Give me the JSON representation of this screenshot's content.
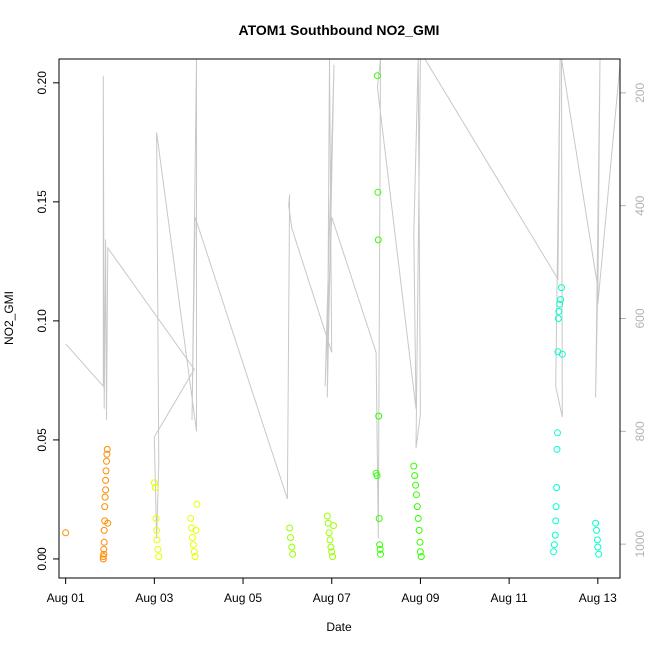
{
  "chart_data": {
    "type": "scatter",
    "title": "ATOM1 Southbound NO2_GMI",
    "xlabel": "Date",
    "ylabel": "NO2_GMI",
    "x_ticks": [
      "Aug 01",
      "Aug 03",
      "Aug 05",
      "Aug 07",
      "Aug 09",
      "Aug 11",
      "Aug 13"
    ],
    "y_ticks": [
      "0.00",
      "0.05",
      "0.10",
      "0.15",
      "0.20"
    ],
    "y2_ticks": [
      "200",
      "400",
      "600",
      "800",
      "1000"
    ],
    "xlim_days": [
      0.85,
      13.5
    ],
    "ylim": [
      -0.008,
      0.21
    ],
    "y2lim": [
      1060,
      140
    ],
    "y2_reversed": true,
    "grid": false,
    "legend": "none",
    "point_colors": [
      "#ff8c00",
      "#ffd700",
      "#e6ff00",
      "#9aff00",
      "#33ff00",
      "#00ff66",
      "#00ffcc"
    ],
    "track_color": "#c8c8c8",
    "series": [
      {
        "x": [
          1.0,
          1.85,
          1.85,
          1.86,
          1.86,
          1.87,
          1.87,
          1.88,
          1.88,
          1.89,
          1.9,
          1.9,
          1.91,
          1.92,
          1.93,
          1.94,
          1.95
        ],
        "y": [
          0.011,
          0.0,
          0.001,
          0.002,
          0.004,
          0.007,
          0.012,
          0.016,
          0.022,
          0.026,
          0.029,
          0.033,
          0.037,
          0.041,
          0.044,
          0.046,
          0.015
        ],
        "color": "#ff8c00"
      },
      {
        "x": [
          3.0,
          3.02,
          3.04,
          3.05,
          3.06,
          3.08,
          3.1,
          3.82,
          3.84,
          3.86,
          3.88,
          3.9,
          3.92,
          3.94,
          3.96
        ],
        "y": [
          0.032,
          0.03,
          0.017,
          0.012,
          0.008,
          0.004,
          0.001,
          0.017,
          0.013,
          0.009,
          0.006,
          0.003,
          0.001,
          0.012,
          0.023
        ],
        "color": "#e6ff00"
      },
      {
        "x": [
          6.05,
          6.07,
          6.1,
          6.12,
          6.9,
          6.92,
          6.94,
          6.96,
          6.98,
          7.0,
          7.02,
          7.04
        ],
        "y": [
          0.013,
          0.009,
          0.005,
          0.002,
          0.018,
          0.015,
          0.011,
          0.008,
          0.005,
          0.003,
          0.001,
          0.014
        ],
        "color": "#9aff00"
      },
      {
        "x": [
          8.0,
          8.02,
          8.03,
          8.04,
          8.05,
          8.06,
          8.07,
          8.08,
          8.09,
          8.1,
          8.85,
          8.87,
          8.89,
          8.91,
          8.93,
          8.95,
          8.97,
          8.99,
          9.0,
          9.02
        ],
        "y": [
          0.036,
          0.035,
          0.203,
          0.154,
          0.134,
          0.06,
          0.017,
          0.006,
          0.004,
          0.002,
          0.039,
          0.035,
          0.031,
          0.027,
          0.022,
          0.017,
          0.012,
          0.007,
          0.003,
          0.001
        ],
        "color": "#33ff00"
      },
      {
        "x": [
          12.0,
          12.02,
          12.04,
          12.05,
          12.06,
          12.07,
          12.08,
          12.09,
          12.1,
          12.11,
          12.12,
          12.14,
          12.16,
          12.18,
          12.2,
          12.95,
          12.97,
          12.99,
          13.0,
          13.02
        ],
        "y": [
          0.003,
          0.006,
          0.01,
          0.016,
          0.022,
          0.03,
          0.046,
          0.053,
          0.087,
          0.101,
          0.104,
          0.107,
          0.109,
          0.114,
          0.086,
          0.015,
          0.012,
          0.008,
          0.005,
          0.002
        ],
        "color": "#00ffcc"
      }
    ],
    "track": {
      "x": [
        1.0,
        1.85,
        1.85,
        1.87,
        1.9,
        1.92,
        1.95,
        3.9,
        3.0,
        3.05,
        3.1,
        3.05,
        3.95,
        3.95,
        3.85,
        3.92,
        6.0,
        6.05,
        6.03,
        6.1,
        7.0,
        6.95,
        6.9,
        7.05,
        6.85,
        7.0,
        8.0,
        8.05,
        8.1,
        8.03,
        8.9,
        8.85,
        8.95,
        9.0,
        8.9,
        9.0,
        9.1,
        12.1,
        12.15,
        12.05,
        12.2,
        12.18,
        13.0,
        13.0,
        12.95,
        13.05,
        13.0,
        13.5
      ],
      "y": [
        645,
        720,
        170,
        760,
        460,
        780,
        475,
        690,
        810,
        990,
        855,
        270,
        800,
        140,
        780,
        420,
        920,
        380,
        400,
        440,
        660,
        140,
        740,
        150,
        720,
        420,
        660,
        990,
        140,
        190,
        760,
        450,
        140,
        770,
        830,
        140,
        140,
        530,
        140,
        720,
        775,
        140,
        545,
        540,
        740,
        140,
        575,
        150
      ]
    }
  }
}
